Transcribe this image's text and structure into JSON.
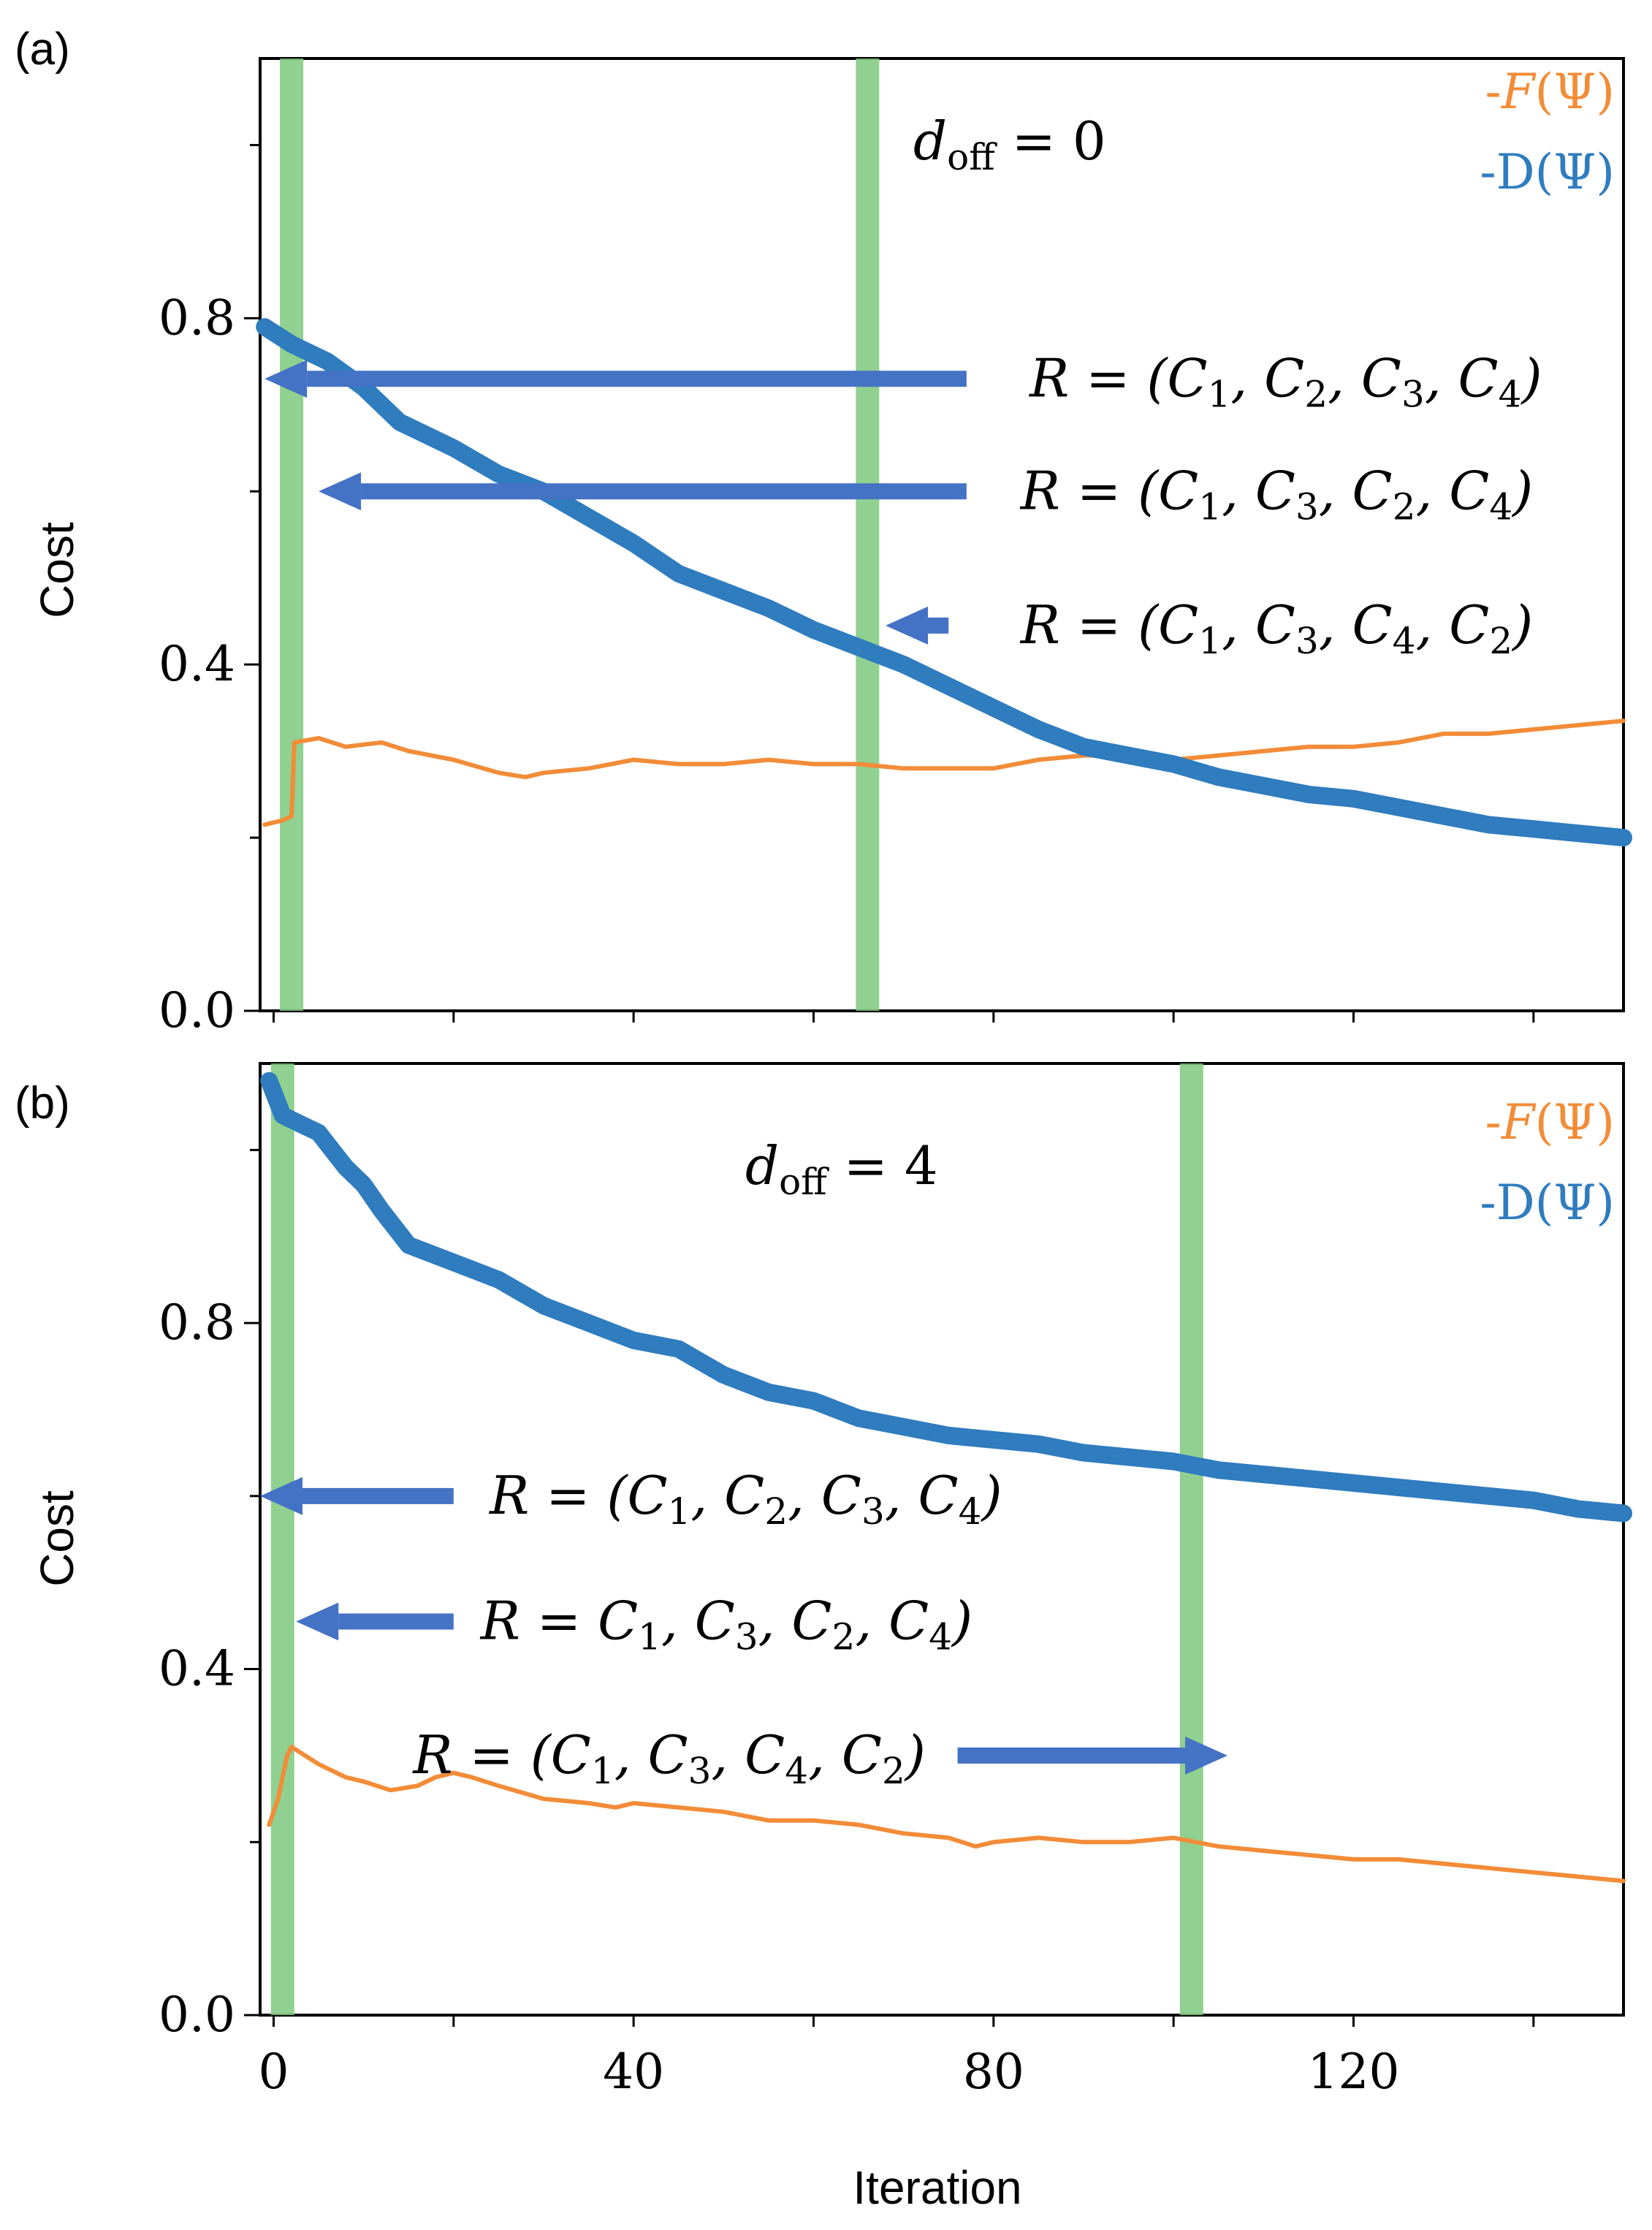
{
  "colors": {
    "F": "#F28C38",
    "D": "#2F7CBF",
    "highlight": "#7DC87D",
    "arrow": "#4472C4",
    "axis": "#000000"
  },
  "chart_data": [
    {
      "type": "line",
      "panel_label": "(a)",
      "title": "d_off = 0",
      "annotation": {
        "main": "d",
        "sub": "off",
        "tail": " = 0"
      },
      "ylabel": "Cost",
      "xlabel": "",
      "xlim": [
        -1.5,
        150
      ],
      "ylim": [
        0,
        1.1
      ],
      "yticks": [
        0.0,
        0.4,
        0.8
      ],
      "ytick_labels": [
        "0.0",
        "0.4",
        "0.8"
      ],
      "yminor": [
        0.2,
        0.6,
        1.0
      ],
      "xticks": [
        0,
        20,
        40,
        60,
        80,
        100,
        120,
        140
      ],
      "highlight_iterations": [
        2,
        66
      ],
      "legend": [
        {
          "key": "F",
          "prefix": "-",
          "fn": "F",
          "arg": "(Ψ)"
        },
        {
          "key": "D",
          "prefix": "-",
          "fn": "D",
          "arg": "(Ψ)"
        }
      ],
      "series": [
        {
          "name": "-F(Ψ)",
          "key": "F",
          "x": [
            -1,
            1,
            2,
            2.3,
            5,
            8,
            12,
            15,
            20,
            25,
            28,
            30,
            35,
            40,
            45,
            50,
            55,
            60,
            65,
            70,
            75,
            80,
            85,
            90,
            95,
            100,
            105,
            110,
            115,
            120,
            125,
            130,
            135,
            140,
            145,
            150
          ],
          "values": [
            0.215,
            0.22,
            0.225,
            0.31,
            0.315,
            0.305,
            0.31,
            0.3,
            0.29,
            0.275,
            0.27,
            0.275,
            0.28,
            0.29,
            0.285,
            0.285,
            0.29,
            0.285,
            0.285,
            0.28,
            0.28,
            0.28,
            0.29,
            0.295,
            0.295,
            0.29,
            0.295,
            0.3,
            0.305,
            0.305,
            0.31,
            0.32,
            0.32,
            0.325,
            0.33,
            0.335
          ]
        },
        {
          "name": "-D(Ψ)",
          "key": "D",
          "x": [
            -1,
            2,
            6,
            10,
            14,
            20,
            25,
            30,
            35,
            40,
            45,
            50,
            55,
            60,
            65,
            70,
            75,
            80,
            85,
            90,
            95,
            100,
            105,
            110,
            115,
            120,
            125,
            130,
            135,
            140,
            145,
            150
          ],
          "values": [
            0.79,
            0.77,
            0.75,
            0.72,
            0.68,
            0.65,
            0.62,
            0.6,
            0.57,
            0.54,
            0.505,
            0.485,
            0.465,
            0.44,
            0.42,
            0.4,
            0.375,
            0.35,
            0.325,
            0.305,
            0.295,
            0.285,
            0.27,
            0.26,
            0.25,
            0.245,
            0.235,
            0.225,
            0.215,
            0.21,
            0.205,
            0.2
          ]
        }
      ],
      "arrows": [
        {
          "label": "R = (C1, C2, C3, C4)",
          "parts": [
            "R = (C",
            "1",
            ", C",
            "2",
            ", C",
            "3",
            ", C",
            "4",
            ")"
          ],
          "direction": "left",
          "from_iteration": 77,
          "to_iteration": -1,
          "y_value": 0.73,
          "label_iteration": 84
        },
        {
          "label": "R = (C1, C3, C2, C4)",
          "parts": [
            "R = (C",
            "1",
            ", C",
            "3",
            ", C",
            "2",
            ", C",
            "4",
            ")"
          ],
          "direction": "left",
          "from_iteration": 77,
          "to_iteration": 5,
          "y_value": 0.6,
          "label_iteration": 83
        },
        {
          "label": "R = (C1, C3, C4, C2)",
          "parts": [
            "R = (C",
            "1",
            ", C",
            "3",
            ", C",
            "4",
            ", C",
            "2",
            ")"
          ],
          "direction": "left",
          "from_iteration": 75,
          "to_iteration": 68,
          "y_value": 0.445,
          "label_iteration": 83
        }
      ]
    },
    {
      "type": "line",
      "panel_label": "(b)",
      "title": "d_off = 4",
      "annotation": {
        "main": "d",
        "sub": "off",
        "tail": " = 4"
      },
      "ylabel": "Cost",
      "xlabel": "Iteration",
      "xlim": [
        -1.5,
        150
      ],
      "ylim": [
        0,
        1.1
      ],
      "yticks": [
        0.0,
        0.4,
        0.8
      ],
      "ytick_labels": [
        "0.0",
        "0.4",
        "0.8"
      ],
      "yminor": [
        0.2,
        0.6,
        1.0
      ],
      "xticks": [
        0,
        20,
        40,
        60,
        80,
        100,
        120,
        140
      ],
      "xtick_labels": [
        "0",
        "",
        "40",
        "",
        "80",
        "",
        "120",
        ""
      ],
      "highlight_iterations": [
        1,
        102
      ],
      "legend": [
        {
          "key": "F",
          "prefix": "-",
          "fn": "F",
          "arg": "(Ψ)"
        },
        {
          "key": "D",
          "prefix": "-",
          "fn": "D",
          "arg": "(Ψ)"
        }
      ],
      "series": [
        {
          "name": "-F(Ψ)",
          "key": "F",
          "x": [
            -0.5,
            0.5,
            1.5,
            2,
            5,
            8,
            10,
            13,
            16,
            18,
            20,
            22,
            25,
            30,
            35,
            38,
            40,
            45,
            50,
            55,
            60,
            65,
            70,
            75,
            78,
            80,
            85,
            90,
            95,
            100,
            105,
            110,
            115,
            120,
            125,
            130,
            135,
            140,
            145,
            150
          ],
          "values": [
            0.22,
            0.25,
            0.3,
            0.31,
            0.29,
            0.275,
            0.27,
            0.26,
            0.265,
            0.275,
            0.28,
            0.275,
            0.265,
            0.25,
            0.245,
            0.24,
            0.245,
            0.24,
            0.235,
            0.225,
            0.225,
            0.22,
            0.21,
            0.205,
            0.195,
            0.2,
            0.205,
            0.2,
            0.2,
            0.205,
            0.195,
            0.19,
            0.185,
            0.18,
            0.18,
            0.175,
            0.17,
            0.165,
            0.16,
            0.155
          ]
        },
        {
          "name": "-D(Ψ)",
          "key": "D",
          "x": [
            -0.5,
            1,
            3,
            5,
            8,
            10,
            12,
            15,
            20,
            25,
            30,
            35,
            40,
            45,
            50,
            55,
            60,
            65,
            70,
            75,
            80,
            85,
            90,
            95,
            100,
            105,
            110,
            115,
            120,
            125,
            130,
            135,
            140,
            145,
            150
          ],
          "values": [
            1.08,
            1.04,
            1.03,
            1.02,
            0.98,
            0.96,
            0.93,
            0.89,
            0.87,
            0.85,
            0.82,
            0.8,
            0.78,
            0.77,
            0.74,
            0.72,
            0.71,
            0.69,
            0.68,
            0.67,
            0.665,
            0.66,
            0.65,
            0.645,
            0.64,
            0.63,
            0.625,
            0.62,
            0.615,
            0.61,
            0.605,
            0.6,
            0.595,
            0.585,
            0.58
          ]
        }
      ],
      "arrows": [
        {
          "label": "R = (C1, C2, C3, C4)",
          "parts": [
            "R = (C",
            "1",
            ", C",
            "2",
            ", C",
            "3",
            ", C",
            "4",
            ")"
          ],
          "direction": "left",
          "from_iteration": 20,
          "to_iteration": -1.5,
          "y_value": 0.6,
          "label_iteration": 24
        },
        {
          "label": "R = C1, C3, C2, C4)",
          "parts": [
            "R = C",
            "1",
            ", C",
            "3",
            ", C",
            "2",
            ", C",
            "4",
            ")"
          ],
          "direction": "left",
          "from_iteration": 20,
          "to_iteration": 2.5,
          "y_value": 0.455,
          "label_iteration": 23
        },
        {
          "label": "R = (C1, C3, C4, C2)",
          "parts": [
            "R = (C",
            "1",
            ", C",
            "3",
            ", C",
            "4",
            ", C",
            "2",
            ")"
          ],
          "direction": "right",
          "from_iteration": 76,
          "to_iteration": 106,
          "y_value": 0.3,
          "label_iteration": 15.5
        }
      ]
    }
  ]
}
